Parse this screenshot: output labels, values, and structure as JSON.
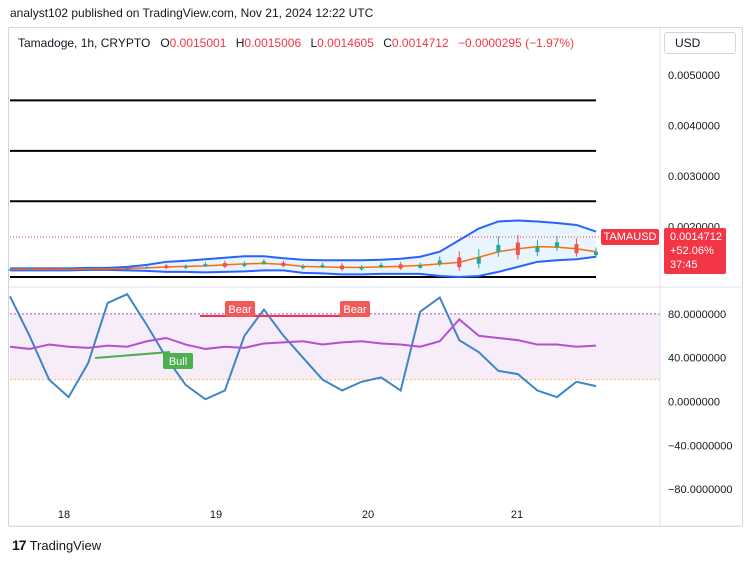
{
  "header": {
    "text": "analyst102 published on TradingView.com, Nov 21, 2024 12:22 UTC"
  },
  "symbol": {
    "name": "Tamadoge, 1h, CRYPTO",
    "open_label": "O",
    "open": "0.0015001",
    "high_label": "H",
    "high": "0.0015006",
    "low_label": "L",
    "low": "0.0014605",
    "close_label": "C",
    "close": "0.0014712",
    "change": "−0.0000295 (−1.97%)"
  },
  "currency_button": "USD",
  "price_tag": {
    "ticker": "TAMAUSD",
    "price": "0.0014712",
    "pct": "+52.06%",
    "countdown": "37:45"
  },
  "price_axis": [
    "0.0050000",
    "0.0040000",
    "0.0030000",
    "0.0020000"
  ],
  "osc_axis": [
    "80.0000000",
    "40.0000000",
    "0.0000000",
    "−40.0000000",
    "−80.0000000"
  ],
  "time_axis": [
    "18",
    "19",
    "20",
    "21"
  ],
  "signals": {
    "bear1": "Bear",
    "bear2": "Bear",
    "bull": "Bull"
  },
  "footer": {
    "brand": "TradingView"
  },
  "colors": {
    "up": "#26a69a",
    "down": "#ef5350",
    "band": "#2962ff",
    "basis": "#ff6d00",
    "rsi": "#b34fd1",
    "stoch": "#3d85c6"
  },
  "chart_data": [
    {
      "type": "line",
      "title": "Tamadoge, 1h, CRYPTO",
      "indicators": [
        "bollinger bands",
        "horizontal levels"
      ],
      "horizontal_levels": [
        0.0045,
        0.0035,
        0.0025,
        0.001
      ],
      "ylim": [
        0.0009,
        0.0053
      ],
      "x_ticks": [
        "18",
        "19",
        "20",
        "21"
      ],
      "series": [
        {
          "values": [
            0.00115,
            0.00115,
            0.00115,
            0.00115,
            0.00116,
            0.00116,
            0.00117,
            0.00118,
            0.0012,
            0.00121,
            0.00122,
            0.00124,
            0.00126,
            0.00127,
            0.00125,
            0.00121,
            0.0012,
            0.00119,
            0.00119,
            0.0012,
            0.00121,
            0.00123,
            0.00126,
            0.00129,
            0.00139,
            0.0015,
            0.00156,
            0.0016,
            0.00159,
            0.00156,
            0.0015
          ]
        },
        {
          "values": [
            0.00117,
            0.00117,
            0.00117,
            0.00117,
            0.00118,
            0.00118,
            0.0012,
            0.00124,
            0.0013,
            0.00132,
            0.00135,
            0.00138,
            0.00141,
            0.00141,
            0.00137,
            0.00134,
            0.00133,
            0.00133,
            0.00133,
            0.00134,
            0.00136,
            0.0014,
            0.0015,
            0.00173,
            0.00196,
            0.0021,
            0.00212,
            0.0021,
            0.00207,
            0.00203,
            0.0019
          ]
        },
        {
          "values": [
            0.00113,
            0.00113,
            0.00113,
            0.00113,
            0.00114,
            0.00114,
            0.00113,
            0.00112,
            0.0011,
            0.0011,
            0.00109,
            0.0011,
            0.00111,
            0.00113,
            0.00113,
            0.00108,
            0.00107,
            0.00105,
            0.00105,
            0.00106,
            0.00106,
            0.00106,
            0.00102,
            0.001,
            0.00102,
            0.0011,
            0.0012,
            0.0013,
            0.00133,
            0.00135,
            0.0014
          ]
        }
      ]
    },
    {
      "type": "line",
      "ylim": [
        -90,
        100
      ],
      "x_ticks": [
        "18",
        "19",
        "20",
        "21"
      ],
      "levels": [
        80,
        20
      ],
      "series": [
        {
          "values": [
            50,
            48,
            52,
            50,
            49,
            51,
            50,
            55,
            58,
            52,
            48,
            50,
            49,
            53,
            54,
            55,
            52,
            54,
            55,
            53,
            52,
            50,
            55,
            75,
            60,
            58,
            56,
            52,
            52,
            50,
            51
          ]
        },
        {
          "values": [
            96,
            60,
            20,
            4,
            35,
            90,
            98,
            70,
            40,
            15,
            2,
            10,
            60,
            84,
            60,
            40,
            20,
            10,
            18,
            22,
            10,
            82,
            95,
            56,
            45,
            28,
            25,
            10,
            4,
            18,
            14
          ]
        }
      ]
    }
  ]
}
